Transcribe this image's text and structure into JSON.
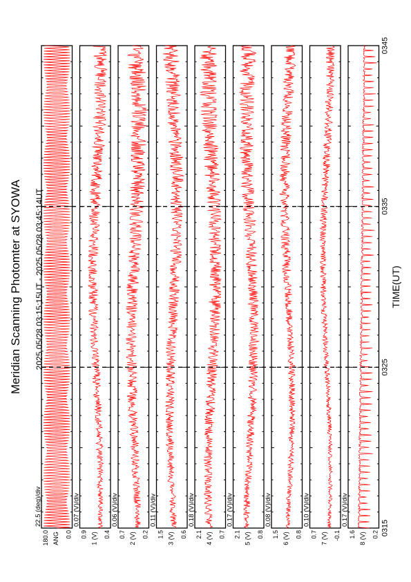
{
  "chart_data": {
    "type": "line",
    "title": "Meridian Scanning Photomter at SYOWA",
    "time_range_label": "2025 05/28 03:15:15UT - 2025 05/28 03:45:14UT",
    "xlabel": "TIME(UT)",
    "x_ticks": [
      "0315",
      "0325",
      "0335",
      "0345"
    ],
    "x_range": [
      "03:15",
      "03:45"
    ],
    "line_color": "#ff0000",
    "panels": [
      {
        "scale": "22.5 (deg)/div",
        "ylabel": "ANG",
        "y_top": "180.0",
        "y_bottom": "0.0",
        "pattern": "sweep"
      },
      {
        "scale": "0.07 (V)/div",
        "ylabel": "1 (V)",
        "y_top": "0.9",
        "y_bottom": "0.4",
        "pattern": "noise",
        "amp": 0.35
      },
      {
        "scale": "0.06 (V)/div",
        "ylabel": "2 (V)",
        "y_top": "0.7",
        "y_bottom": "0.2",
        "pattern": "noise",
        "amp": 0.45
      },
      {
        "scale": "0.11 (V)/div",
        "ylabel": "3 (V)",
        "y_top": "1.5",
        "y_bottom": "0.6",
        "pattern": "noise",
        "amp": 0.4
      },
      {
        "scale": "0.18 (V)/div",
        "ylabel": "4 (V)",
        "y_top": "2.1",
        "y_bottom": "0.7",
        "pattern": "noise",
        "amp": 0.45
      },
      {
        "scale": "0.17 (V)/div",
        "ylabel": "5 (V)",
        "y_top": "2.1",
        "y_bottom": "0.8",
        "pattern": "noise",
        "amp": 0.4
      },
      {
        "scale": "0.08 (V)/div",
        "ylabel": "6 (V)",
        "y_top": "1.5",
        "y_bottom": "0.8",
        "pattern": "noise",
        "amp": 0.3
      },
      {
        "scale": "0.10 (V)/div",
        "ylabel": "7 (V)",
        "y_top": "0.7",
        "y_bottom": "-0.1",
        "pattern": "noise",
        "amp": 0.22
      },
      {
        "scale": "0.17 (V)/div",
        "ylabel": "8 (V)",
        "y_top": "1.6",
        "y_bottom": "0.2",
        "pattern": "spikes",
        "amp": 0.4
      }
    ]
  }
}
